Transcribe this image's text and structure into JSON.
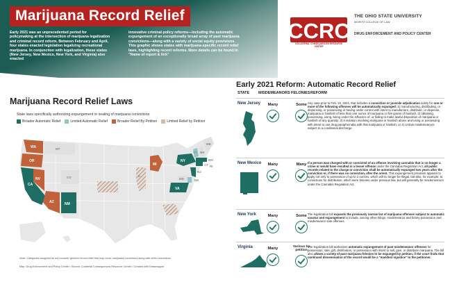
{
  "header": {
    "title": "Marijuana Record Relief",
    "intro_col1": "Early 2021 was an unprecedented period for policymaking at the intersection of marijuana legalization and criminal record reform. Between February and April, four states enacted legislation legalizing recreational marijuana. In conjunction with legalization, these states (New Jersey, New Mexico, New York, and Virginia) also enacted",
    "intro_col2": "innovative criminal policy reforms—including the automatic expungement of an exceptionally broad array of past marijuana convictions—along with a variety of social equity provisions. This graphic shows states with marijuana-specific record relief laws, highlighting recent reforms. More details can be found in \"Name of report & link\""
  },
  "logos": {
    "ccrc_text": "CCRC",
    "ccrc_sub": "COLLATERAL CONSEQUENCES RESOURCE CENTER",
    "osu_name": "The Ohio State University",
    "osu_college": "MORITZ COLLEGE OF LAW",
    "osu_center": "DRUG ENFORCEMENT AND POLICY CENTER"
  },
  "left": {
    "title": "Marijuana Record Relief Laws",
    "subtitle": "State laws specifically authorizing expungement or sealing of marijuana convictions",
    "legend": [
      {
        "label": "Broader Automatic Relief",
        "color": "#1f6e63"
      },
      {
        "label": "Limited Automatic Relief",
        "color": "#8fc6cc"
      },
      {
        "label": "Broader Relief By Petition",
        "color": "#c0623a"
      },
      {
        "label": "Limited Relief by Petition",
        "color": "#d8b8a6"
      }
    ],
    "state_labels": {
      "wa": "WA",
      "or": "OR",
      "ca": "CA",
      "nv": "NV",
      "az": "AZ",
      "nm": "NM",
      "mt": "MT",
      "co": "CO",
      "il": "IL",
      "mi": "MI",
      "ny": "NY",
      "vt": "VT",
      "nh": "NH",
      "ma": "MA",
      "ct": "CT",
      "ri": "RI",
      "nj": "NJ",
      "de": "DE",
      "md": "MD",
      "va": "VA",
      "me": "ME"
    },
    "note": "Note: Categories assigned do not consider general record relief that may cover marijuana convictions along with other convictions",
    "credit": "Map: Drug Enforcement and Policy Center • Source: Collateral Consequences Resource Center • Created with Datawrapper"
  },
  "right": {
    "title": "Early 2021 Reform: Automatic Record Relief",
    "columns": [
      "STATE",
      "MISDEMEANORS",
      "FELONIES",
      "REFORM"
    ],
    "rows": [
      {
        "state": "New Jersey",
        "misdemeanors": "Many",
        "felonies": "Some",
        "reform_lead": "Any case prior to Feb. 22, 2021, that includes a ",
        "reform_bold1": "conviction or juvenile adjudication",
        "reform_mid": " solely for ",
        "reform_bold2": "one or more of the following offenses will be automatically expunged:",
        "reform_tail": " 1) manufacturing, distributing, or dispensing, or possessing or having under control with intent to manufacture, distribute, or dispense, marijuana or hashish of less than one ounce of marijuana or five grams of hashish; 2) obtaining, possessing, using, being under the influence of, or failing to make lawful disposition of marijuana or hashish of any quantity; 3) a violation involving marijuana or hashish above and using or possessing with intent to use drug paraphernalia with that marijuana or hashish; or 4) certain misdemeanors subject to a conditional discharge."
      },
      {
        "state": "New Mexico",
        "misdemeanors": "Many",
        "felonies": "Many",
        "reform_lead": "",
        "reform_bold1": "If a person was charged with or convicted of an offense involving cannabis that is no longer a crime or would have resulted in a lesser offense",
        "reform_mid": " under the Cannabis Regulation Act, ",
        "reform_bold2": "all public records related to the charge or conviction shall be automatically expunged two years after the conviction or, if there was no conviction, after the arrest.",
        "reform_tail": " This expungement provision appears to apply not only to possession of up to 2 ounces, which will no longer be illegal, but also, for example, to convictions for distribution, which were felonies under previous law, but will generally be misdemeanors under the Cannabis Regulation Act."
      },
      {
        "state": "New York",
        "misdemeanors": "Many",
        "felonies": "Some",
        "reform_lead": "The legalization bill ",
        "reform_bold1": "expands the previously narrow list of marijuana offenses subject to automatic vacatur and expungement",
        "reform_mid": " to include, among other things, misdemeanor and felony possession and misdemeanor sale offenses.",
        "reform_bold2": "",
        "reform_tail": ""
      },
      {
        "state": "Virginia",
        "misdemeanors": "Many",
        "felonies": "Various by petition",
        "reform_lead": "The legalization bill authorizes ",
        "reform_bold1": "automatic expungement of past misdemeanor offenses",
        "reform_mid": " for possession, sale, gift, distribution, or possession with intent to sell, give, or distribute marijuana. The bill also ",
        "reform_bold2": "allows a variety of past marijuana felonies to be expunged by petition, if the court finds that continued dissemination of the record would be a \"manifest injustice\" to the petitioner.",
        "reform_tail": ""
      }
    ]
  }
}
